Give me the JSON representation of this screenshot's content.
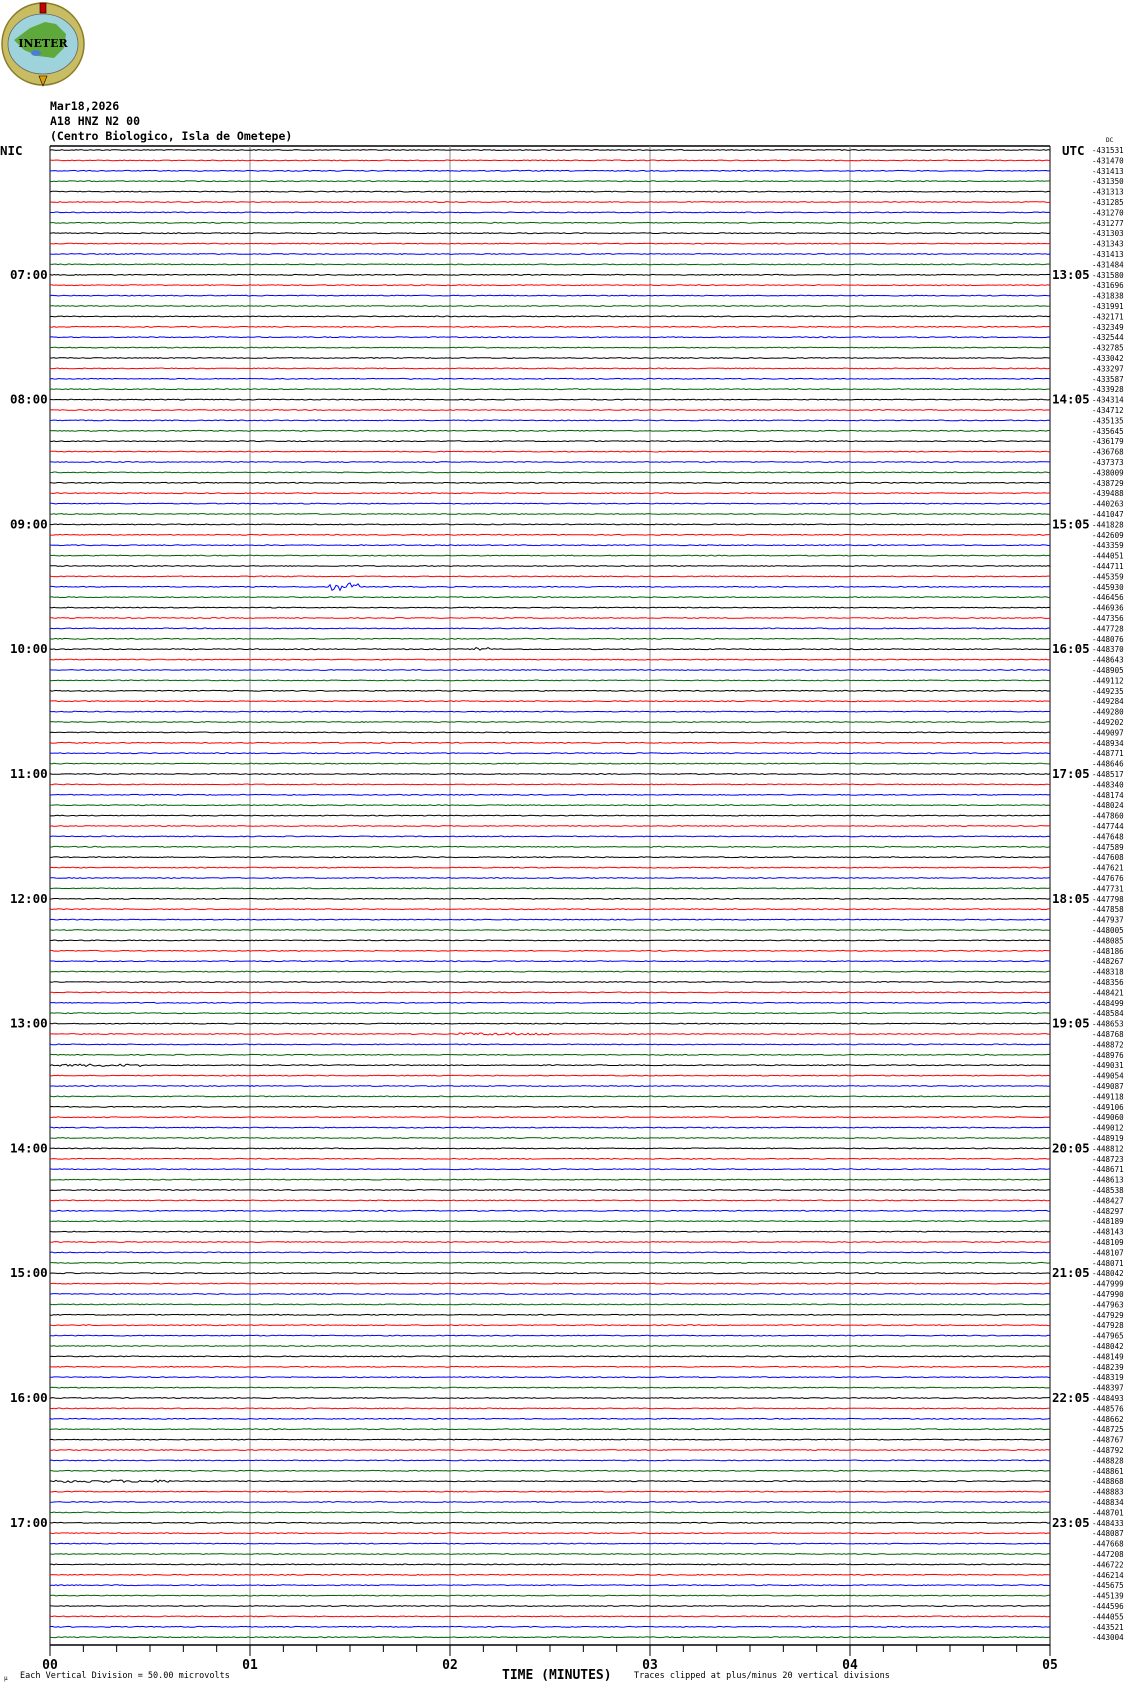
{
  "logo": {
    "text": "INETER"
  },
  "header": {
    "date": "Mar18,2026",
    "channel": "A18 HNZ N2 00",
    "station": "(Centro Biologico, Isla de Ometepe)"
  },
  "chart_data": {
    "type": "line",
    "title": "",
    "left_timezone": "NIC",
    "right_timezone": "UTC",
    "dc_label": "DC",
    "minutes_per_row": 5,
    "row_count": 144,
    "trace_colors": [
      "#000000",
      "#ff0000",
      "#0000ff",
      "#006400"
    ],
    "grid_color": "#888888",
    "left_hour_labels": [
      {
        "row": 12,
        "label": "07:00"
      },
      {
        "row": 24,
        "label": "08:00"
      },
      {
        "row": 36,
        "label": "09:00"
      },
      {
        "row": 48,
        "label": "10:00"
      },
      {
        "row": 60,
        "label": "11:00"
      },
      {
        "row": 72,
        "label": "12:00"
      },
      {
        "row": 84,
        "label": "13:00"
      },
      {
        "row": 96,
        "label": "14:00"
      },
      {
        "row": 108,
        "label": "15:00"
      },
      {
        "row": 120,
        "label": "16:00"
      },
      {
        "row": 132,
        "label": "17:00"
      }
    ],
    "right_hour_labels": [
      {
        "row": 12,
        "label": "13:05"
      },
      {
        "row": 24,
        "label": "14:05"
      },
      {
        "row": 36,
        "label": "15:05"
      },
      {
        "row": 48,
        "label": "16:05"
      },
      {
        "row": 60,
        "label": "17:05"
      },
      {
        "row": 72,
        "label": "18:05"
      },
      {
        "row": 84,
        "label": "19:05"
      },
      {
        "row": 96,
        "label": "20:05"
      },
      {
        "row": 108,
        "label": "21:05"
      },
      {
        "row": 120,
        "label": "22:05"
      },
      {
        "row": 132,
        "label": "23:05"
      }
    ],
    "row_offsets": [
      "-431531",
      "-431470",
      "-431413",
      "-431350",
      "-431313",
      "-431285",
      "-431270",
      "-431277",
      "-431303",
      "-431343",
      "-431413",
      "-431484",
      "-431580",
      "-431696",
      "-431838",
      "-431991",
      "-432171",
      "-432349",
      "-432544",
      "-432785",
      "-433042",
      "-433297",
      "-433587",
      "-433928",
      "-434314",
      "-434712",
      "-435135",
      "-435645",
      "-436179",
      "-436768",
      "-437373",
      "-438009",
      "-438729",
      "-439488",
      "-440263",
      "-441047",
      "-441828",
      "-442609",
      "-443359",
      "-444051",
      "-444711",
      "-445359",
      "-445930",
      "-446456",
      "-446936",
      "-447356",
      "-447728",
      "-448076",
      "-448370",
      "-448643",
      "-448905",
      "-449112",
      "-449235",
      "-449284",
      "-449280",
      "-449202",
      "-449097",
      "-448934",
      "-448771",
      "-448646",
      "-448517",
      "-448340",
      "-448174",
      "-448024",
      "-447860",
      "-447744",
      "-447648",
      "-447589",
      "-447608",
      "-447621",
      "-447676",
      "-447731",
      "-447798",
      "-447858",
      "-447937",
      "-448005",
      "-448085",
      "-448186",
      "-448267",
      "-448318",
      "-448356",
      "-448421",
      "-448499",
      "-448584",
      "-448653",
      "-448768",
      "-448872",
      "-448976",
      "-449031",
      "-449054",
      "-449087",
      "-449118",
      "-449106",
      "-449060",
      "-449012",
      "-448919",
      "-448812",
      "-448723",
      "-448671",
      "-448613",
      "-448538",
      "-448427",
      "-448297",
      "-448189",
      "-448143",
      "-448109",
      "-448107",
      "-448071",
      "-448042",
      "-447999",
      "-447990",
      "-447963",
      "-447929",
      "-447928",
      "-447965",
      "-448042",
      "-448149",
      "-448239",
      "-448319",
      "-448397",
      "-448493",
      "-448576",
      "-448662",
      "-448725",
      "-448767",
      "-448792",
      "-448828",
      "-448861",
      "-448868",
      "-448883",
      "-448834",
      "-448701",
      "-448433",
      "-448087",
      "-447668",
      "-447208",
      "-446722",
      "-446214",
      "-445675",
      "-445139",
      "-444596",
      "-444055",
      "-443521",
      "-443004"
    ],
    "events": [
      {
        "row": 42,
        "start_min": 1.4,
        "end_min": 1.55,
        "amplitude": 8
      },
      {
        "row": 48,
        "start_min": 2.13,
        "end_min": 2.2,
        "amplitude": 4
      },
      {
        "row": 85,
        "start_min": 2.05,
        "end_min": 2.5,
        "amplitude": 2.5
      },
      {
        "row": 88,
        "start_min": 0.05,
        "end_min": 0.45,
        "amplitude": 2.5
      },
      {
        "row": 128,
        "start_min": 0.0,
        "end_min": 0.6,
        "amplitude": 2.5
      }
    ],
    "x_axis": {
      "label": "TIME (MINUTES)",
      "range": [
        0,
        5
      ],
      "tick_labels": [
        "00",
        "01",
        "02",
        "03",
        "04",
        "05"
      ],
      "minor_ticks_per_minute": 6
    },
    "footer": {
      "scale": "Each Vertical Division =   50.00 microvolts",
      "clip_note": "Traces clipped at plus/minus 20 vertical divisions"
    }
  }
}
